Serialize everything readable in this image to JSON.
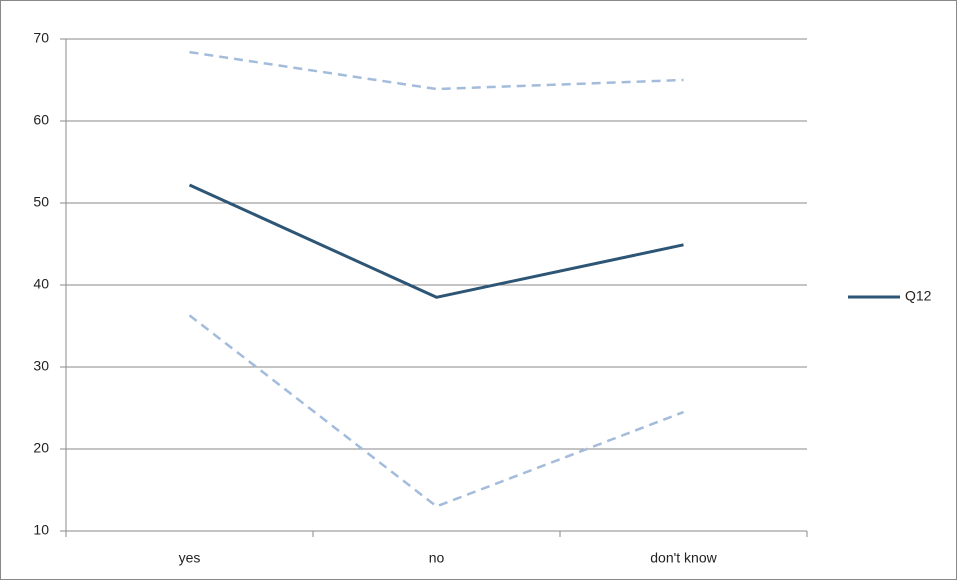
{
  "chart_data": {
    "type": "line",
    "categories": [
      "yes",
      "no",
      "don't know"
    ],
    "series": [
      {
        "color": "#a3bcdb",
        "dashed": true,
        "values": [
          68.4,
          63.9,
          65.0
        ]
      },
      {
        "name": "Q12",
        "color": "#2d5575",
        "dashed": false,
        "values": [
          52.2,
          38.5,
          44.9
        ]
      },
      {
        "color": "#a3bcdb",
        "dashed": true,
        "values": [
          36.3,
          13.0,
          24.5
        ]
      }
    ],
    "ylim": [
      10,
      70
    ],
    "yticks": [
      10,
      20,
      30,
      40,
      50,
      60,
      70
    ],
    "grid": true,
    "legend": "right"
  }
}
